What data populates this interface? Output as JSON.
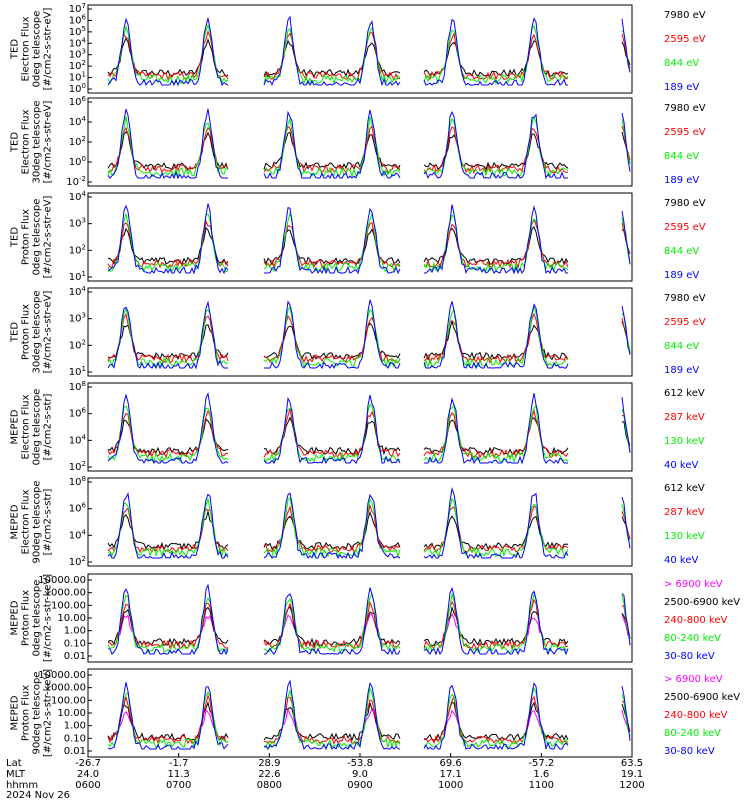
{
  "colors": {
    "blue": "#0000ff",
    "red": "#ff0000",
    "green": "#00ee00",
    "black": "#000000",
    "magenta": "#ff00ff"
  },
  "chart_data": [
    {
      "type": "line",
      "ylabel": [
        "TED",
        "Electron Flux",
        "0deg telescope",
        "[#/cm2-s-str-eV]"
      ],
      "yscale": "log",
      "ylim": [
        1,
        10000000
      ],
      "ytick_labels": [
        "10^0",
        "10^1",
        "10^2",
        "10^3",
        "10^4",
        "10^5",
        "10^6",
        "10^7"
      ],
      "series": [
        {
          "name": "7980 eV",
          "color": "black"
        },
        {
          "name": "2595 eV",
          "color": "red"
        },
        {
          "name": "844 eV",
          "color": "green"
        },
        {
          "name": "189 eV",
          "color": "blue"
        }
      ]
    },
    {
      "type": "line",
      "ylabel": [
        "TED",
        "Electron Flux",
        "30deg telescope",
        "[#/cm2-s-str-eV]"
      ],
      "yscale": "log",
      "ylim": [
        0.01,
        1000000
      ],
      "ytick_labels": [
        "10^-2",
        "10^0",
        "10^2",
        "10^4",
        "10^6"
      ],
      "series": [
        {
          "name": "7980 eV",
          "color": "black"
        },
        {
          "name": "2595 eV",
          "color": "red"
        },
        {
          "name": "844 eV",
          "color": "green"
        },
        {
          "name": "189 eV",
          "color": "blue"
        }
      ]
    },
    {
      "type": "line",
      "ylabel": [
        "TED",
        "Proton Flux",
        "0deg telescope",
        "[#/cm2-s-str-eV]"
      ],
      "yscale": "log",
      "ylim": [
        1,
        100000
      ],
      "ytick_labels": [
        "10^1",
        "10^2",
        "10^3",
        "10^4"
      ],
      "series": [
        {
          "name": "7980 eV",
          "color": "black"
        },
        {
          "name": "2595 eV",
          "color": "red"
        },
        {
          "name": "844 eV",
          "color": "green"
        },
        {
          "name": "189 eV",
          "color": "blue"
        }
      ]
    },
    {
      "type": "line",
      "ylabel": [
        "TED",
        "Proton Flux",
        "30deg telescope",
        "[#/cm2-s-str-eV]"
      ],
      "yscale": "log",
      "ylim": [
        1,
        100000
      ],
      "ytick_labels": [
        "10^1",
        "10^2",
        "10^3",
        "10^4"
      ],
      "series": [
        {
          "name": "7980 eV",
          "color": "black"
        },
        {
          "name": "2595 eV",
          "color": "red"
        },
        {
          "name": "844 eV",
          "color": "green"
        },
        {
          "name": "189 eV",
          "color": "blue"
        }
      ]
    },
    {
      "type": "line",
      "ylabel": [
        "MEPED",
        "Electron Flux",
        "0deg telescope",
        "[#/cm2-s-str]"
      ],
      "yscale": "log",
      "ylim": [
        100,
        100000000
      ],
      "ytick_labels": [
        "10^2",
        "10^4",
        "10^6",
        "10^8"
      ],
      "series": [
        {
          "name": "612 keV",
          "color": "black"
        },
        {
          "name": "287 keV",
          "color": "red"
        },
        {
          "name": "130 keV",
          "color": "green"
        },
        {
          "name": "40 keV",
          "color": "blue"
        }
      ]
    },
    {
      "type": "line",
      "ylabel": [
        "MEPED",
        "Electron Flux",
        "90deg telescope",
        "[#/cm2-s-str]"
      ],
      "yscale": "log",
      "ylim": [
        100,
        100000000
      ],
      "ytick_labels": [
        "10^2",
        "10^4",
        "10^6",
        "10^8"
      ],
      "series": [
        {
          "name": "612 keV",
          "color": "black"
        },
        {
          "name": "287 keV",
          "color": "red"
        },
        {
          "name": "130 keV",
          "color": "green"
        },
        {
          "name": "40 keV",
          "color": "blue"
        }
      ]
    },
    {
      "type": "line",
      "ylabel": [
        "MEPED",
        "Proton Flux",
        "0deg telescope",
        "[#/cm2-s-str-keV]"
      ],
      "yscale": "log",
      "ylim": [
        0.01,
        10000
      ],
      "ytick_labels": [
        "10000.00",
        "1000.00",
        "100.00",
        "10.00",
        "1.00",
        "0.10",
        "0.01"
      ],
      "series": [
        {
          "name": "> 6900 keV",
          "color": "magenta"
        },
        {
          "name": "2500-6900 keV",
          "color": "black"
        },
        {
          "name": "240-800 keV",
          "color": "red"
        },
        {
          "name": "80-240 keV",
          "color": "green"
        },
        {
          "name": "30-80 keV",
          "color": "blue"
        }
      ]
    },
    {
      "type": "line",
      "ylabel": [
        "MEPED",
        "Proton Flux",
        "90deg telescope",
        "[#/cm2-s-str-keV]"
      ],
      "yscale": "log",
      "ylim": [
        0.01,
        10000
      ],
      "ytick_labels": [
        "10000.00",
        "1000.00",
        "100.00",
        "10.00",
        "1.00",
        "0.10",
        "0.01"
      ],
      "series": [
        {
          "name": "> 6900 keV",
          "color": "magenta"
        },
        {
          "name": "2500-6900 keV",
          "color": "black"
        },
        {
          "name": "240-800 keV",
          "color": "red"
        },
        {
          "name": "80-240 keV",
          "color": "green"
        },
        {
          "name": "30-80 keV",
          "color": "blue"
        }
      ]
    }
  ],
  "x_axis": {
    "row_labels": [
      "Lat",
      "MLT",
      "hhmm",
      "2024 Nov 26"
    ],
    "ticks": [
      {
        "lat": "-26.7",
        "mlt": "24.0",
        "time": "0600"
      },
      {
        "lat": "-1.7",
        "mlt": "11.3",
        "time": "0700"
      },
      {
        "lat": "28.9",
        "mlt": "22.6",
        "time": "0800"
      },
      {
        "lat": "-53.8",
        "mlt": "9.0",
        "time": "0900"
      },
      {
        "lat": "69.6",
        "mlt": "17.1",
        "time": "1000"
      },
      {
        "lat": "-57.2",
        "mlt": "1.6",
        "time": "1100"
      },
      {
        "lat": "63.5",
        "mlt": "19.1",
        "time": "1200"
      }
    ]
  }
}
